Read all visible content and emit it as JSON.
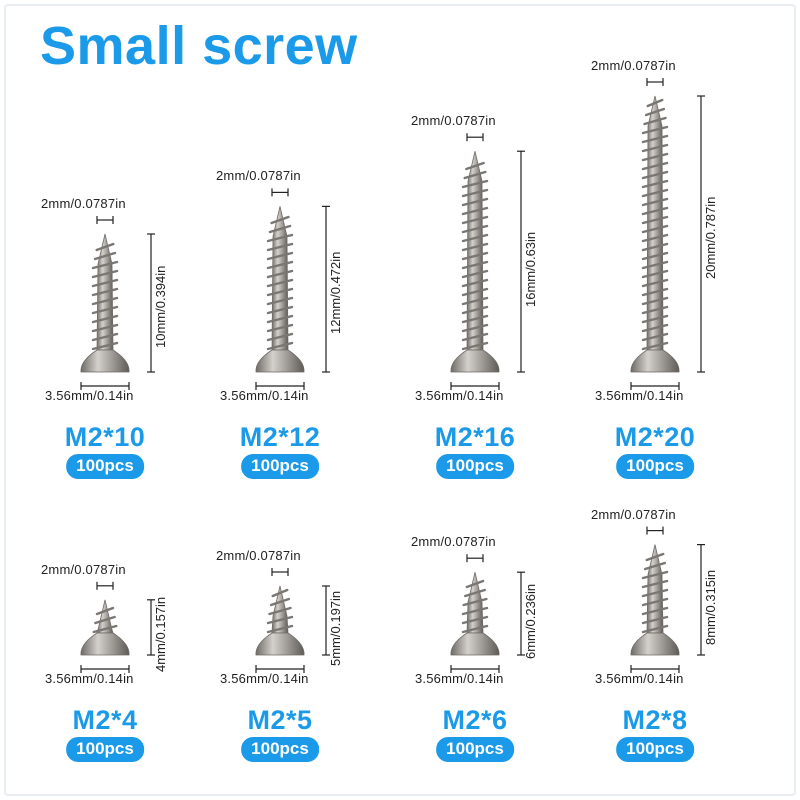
{
  "title": "Small screw",
  "screws": [
    {
      "model": "M2*10",
      "qty": "100pcs",
      "tip": "2mm/0.0787in",
      "head": "3.56mm/0.14in",
      "length_label": "10mm/0.394in",
      "length_mm": 10
    },
    {
      "model": "M2*12",
      "qty": "100pcs",
      "tip": "2mm/0.0787in",
      "head": "3.56mm/0.14in",
      "length_label": "12mm/0.472in",
      "length_mm": 12
    },
    {
      "model": "M2*16",
      "qty": "100pcs",
      "tip": "2mm/0.0787in",
      "head": "3.56mm/0.14in",
      "length_label": "16mm/0.63in",
      "length_mm": 16
    },
    {
      "model": "M2*20",
      "qty": "100pcs",
      "tip": "2mm/0.0787in",
      "head": "3.56mm/0.14in",
      "length_label": "20mm/0.787in",
      "length_mm": 20
    },
    {
      "model": "M2*4",
      "qty": "100pcs",
      "tip": "2mm/0.0787in",
      "head": "3.56mm/0.14in",
      "length_label": "4mm/0.157in",
      "length_mm": 4
    },
    {
      "model": "M2*5",
      "qty": "100pcs",
      "tip": "2mm/0.0787in",
      "head": "3.56mm/0.14in",
      "length_label": "5mm/0.197in",
      "length_mm": 5
    },
    {
      "model": "M2*6",
      "qty": "100pcs",
      "tip": "2mm/0.0787in",
      "head": "3.56mm/0.14in",
      "length_label": "6mm/0.236in",
      "length_mm": 6
    },
    {
      "model": "M2*8",
      "qty": "100pcs",
      "tip": "2mm/0.0787in",
      "head": "3.56mm/0.14in",
      "length_label": "8mm/0.315in",
      "length_mm": 8
    }
  ],
  "colors": {
    "accent": "#1a9ae8",
    "screw": "#a8a49f",
    "text": "#222222"
  }
}
